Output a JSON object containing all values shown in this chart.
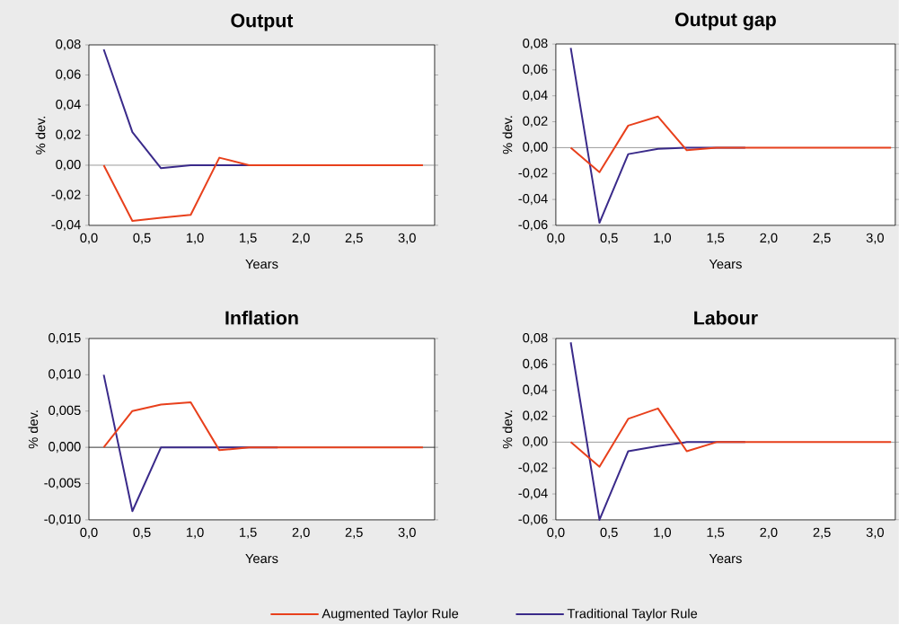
{
  "chart_data": [
    {
      "type": "line",
      "title": "Output",
      "xlabel": "Years",
      "ylabel": "% dev.",
      "x": [
        0.14,
        0.41,
        0.68,
        0.96,
        1.23,
        1.51,
        1.78,
        2.06,
        2.33,
        2.6,
        2.88,
        3.15
      ],
      "series": [
        {
          "color": "#e8401c",
          "values": [
            0,
            -0.037,
            -0.035,
            -0.033,
            0.005,
            0,
            0,
            0,
            0,
            0,
            0,
            0
          ]
        },
        {
          "color": "#3a2a8a",
          "values": [
            0.077,
            0.022,
            -0.002,
            0,
            0,
            0,
            0,
            null,
            null,
            null,
            null,
            null
          ]
        }
      ],
      "xlim": [
        0,
        3.26
      ],
      "ylim": [
        -0.04,
        0.08
      ],
      "xticks": [
        {
          "value": 0,
          "label": "0,0"
        },
        {
          "value": 0.5,
          "label": "0,5"
        },
        {
          "value": 1,
          "label": "1,0"
        },
        {
          "value": 1.5,
          "label": "1,5"
        },
        {
          "value": 2,
          "label": "2,0"
        },
        {
          "value": 2.5,
          "label": "2,5"
        },
        {
          "value": 3,
          "label": "3,0"
        }
      ],
      "yticks": [
        {
          "value": -0.04,
          "label": "-0,04"
        },
        {
          "value": -0.02,
          "label": "-0,02"
        },
        {
          "value": 0,
          "label": "0,00"
        },
        {
          "value": 0.02,
          "label": "0,02"
        },
        {
          "value": 0.04,
          "label": "0,04"
        },
        {
          "value": 0.06,
          "label": "0,06"
        },
        {
          "value": 0.08,
          "label": "0,08"
        }
      ],
      "ref_lines": [
        {
          "axis": "y",
          "value": 0,
          "color": "#808080"
        }
      ]
    },
    {
      "type": "line",
      "title": "Output gap",
      "xlabel": "Years",
      "ylabel": "% dev.",
      "x": [
        0.14,
        0.41,
        0.68,
        0.96,
        1.23,
        1.51,
        1.78,
        2.06,
        2.33,
        2.6,
        2.88,
        3.15
      ],
      "series": [
        {
          "color": "#e8401c",
          "values": [
            0,
            -0.019,
            0.017,
            0.024,
            -0.002,
            0,
            0,
            0,
            0,
            0,
            0,
            0
          ]
        },
        {
          "color": "#3a2a8a",
          "values": [
            0.077,
            -0.058,
            -0.005,
            -0.001,
            0,
            0,
            0,
            null,
            null,
            null,
            null,
            null
          ]
        }
      ],
      "xlim": [
        0,
        3.19
      ],
      "ylim": [
        -0.06,
        0.08
      ],
      "xticks": [
        {
          "value": 0,
          "label": "0,0"
        },
        {
          "value": 0.5,
          "label": "0,5"
        },
        {
          "value": 1,
          "label": "1,0"
        },
        {
          "value": 1.5,
          "label": "1,5"
        },
        {
          "value": 2,
          "label": "2,0"
        },
        {
          "value": 2.5,
          "label": "2,5"
        },
        {
          "value": 3,
          "label": "3,0"
        }
      ],
      "yticks": [
        {
          "value": -0.06,
          "label": "-0,06"
        },
        {
          "value": -0.04,
          "label": "-0,04"
        },
        {
          "value": -0.02,
          "label": "-0,02"
        },
        {
          "value": 0,
          "label": "0,00"
        },
        {
          "value": 0.02,
          "label": "0,02"
        },
        {
          "value": 0.04,
          "label": "0,04"
        },
        {
          "value": 0.06,
          "label": "0,06"
        },
        {
          "value": 0.08,
          "label": "0,08"
        }
      ],
      "ref_lines": [
        {
          "axis": "y",
          "value": 0,
          "color": "#808080"
        }
      ]
    },
    {
      "type": "line",
      "title": "Inflation",
      "xlabel": "Years",
      "ylabel": "% dev.",
      "x": [
        0.14,
        0.41,
        0.68,
        0.96,
        1.23,
        1.51,
        1.78,
        2.06,
        2.33,
        2.6,
        2.88,
        3.15
      ],
      "series": [
        {
          "color": "#e8401c",
          "values": [
            0,
            0.005,
            0.0059,
            0.0062,
            -0.0004,
            0,
            0,
            0,
            0,
            0,
            0,
            0
          ]
        },
        {
          "color": "#3a2a8a",
          "values": [
            0.01,
            -0.0088,
            0,
            0,
            0,
            0,
            0,
            null,
            null,
            null,
            null,
            null
          ]
        }
      ],
      "xlim": [
        0,
        3.26
      ],
      "ylim": [
        -0.01,
        0.015
      ],
      "xticks": [
        {
          "value": 0,
          "label": "0,0"
        },
        {
          "value": 0.5,
          "label": "0,5"
        },
        {
          "value": 1,
          "label": "1,0"
        },
        {
          "value": 1.5,
          "label": "1,5"
        },
        {
          "value": 2,
          "label": "2,0"
        },
        {
          "value": 2.5,
          "label": "2,5"
        },
        {
          "value": 3,
          "label": "3,0"
        }
      ],
      "yticks": [
        {
          "value": -0.01,
          "label": "-0,010"
        },
        {
          "value": -0.005,
          "label": "-0,005"
        },
        {
          "value": 0,
          "label": "0,000"
        },
        {
          "value": 0.005,
          "label": "0,005"
        },
        {
          "value": 0.01,
          "label": "0,010"
        },
        {
          "value": 0.015,
          "label": "0,015"
        }
      ],
      "ref_lines": [
        {
          "axis": "y",
          "value": 0,
          "color": "#000000"
        }
      ]
    },
    {
      "type": "line",
      "title": "Labour",
      "xlabel": "Years",
      "ylabel": "% dev.",
      "legend": "bottom",
      "x": [
        0.14,
        0.41,
        0.68,
        0.96,
        1.23,
        1.51,
        1.78,
        2.06,
        2.33,
        2.6,
        2.88,
        3.15
      ],
      "series": [
        {
          "name": "Augmented Taylor Rule",
          "color": "#e8401c",
          "values": [
            0,
            -0.019,
            0.018,
            0.026,
            -0.007,
            0,
            0,
            0,
            0,
            0,
            0,
            0
          ]
        },
        {
          "name": "Traditional Taylor Rule",
          "color": "#3a2a8a",
          "values": [
            0.077,
            -0.06,
            -0.007,
            -0.003,
            0,
            0,
            0,
            null,
            null,
            null,
            null,
            null
          ]
        }
      ],
      "xlim": [
        0,
        3.19
      ],
      "ylim": [
        -0.06,
        0.08
      ],
      "xticks": [
        {
          "value": 0,
          "label": "0,0"
        },
        {
          "value": 0.5,
          "label": "0,5"
        },
        {
          "value": 1,
          "label": "1,0"
        },
        {
          "value": 1.5,
          "label": "1,5"
        },
        {
          "value": 2,
          "label": "2,0"
        },
        {
          "value": 2.5,
          "label": "2,5"
        },
        {
          "value": 3,
          "label": "3,0"
        }
      ],
      "yticks": [
        {
          "value": -0.06,
          "label": "-0,06"
        },
        {
          "value": -0.04,
          "label": "-0,04"
        },
        {
          "value": -0.02,
          "label": "-0,02"
        },
        {
          "value": 0,
          "label": "0,00"
        },
        {
          "value": 0.02,
          "label": "0,02"
        },
        {
          "value": 0.04,
          "label": "0,04"
        },
        {
          "value": 0.06,
          "label": "0,06"
        },
        {
          "value": 0.08,
          "label": "0,08"
        }
      ],
      "ref_lines": [
        {
          "axis": "y",
          "value": 0,
          "color": "#808080"
        }
      ]
    }
  ]
}
